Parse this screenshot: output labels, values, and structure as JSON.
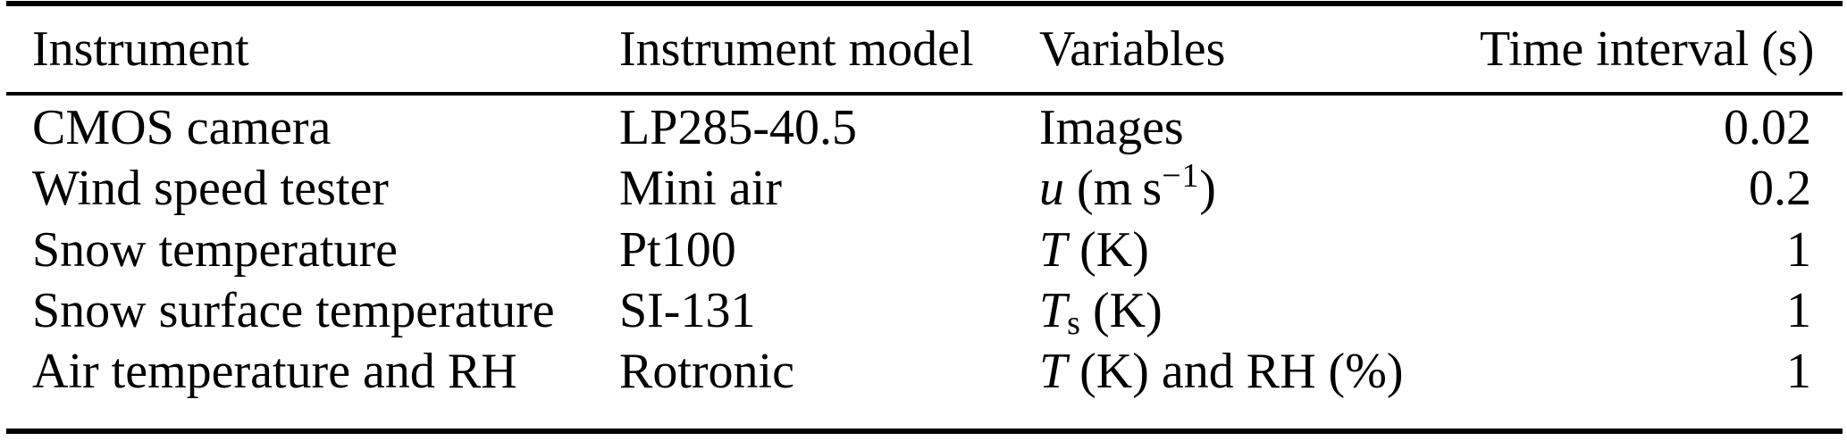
{
  "colors": {
    "paper": "#ffffff",
    "ink": "#000000"
  },
  "table": {
    "columns": [
      {
        "key": "instrument",
        "label": "Instrument"
      },
      {
        "key": "model",
        "label": "Instrument model"
      },
      {
        "key": "variables",
        "label": "Variables"
      },
      {
        "key": "interval",
        "label": "Time interval (s)"
      }
    ],
    "rows": [
      {
        "instrument": "CMOS camera",
        "model": "LP285-40.5",
        "variables": [
          {
            "text": "Images",
            "style": "plain"
          }
        ],
        "interval": "0.02"
      },
      {
        "instrument": "Wind speed tester",
        "model": "Mini air",
        "variables": [
          {
            "text": "u",
            "style": "italic"
          },
          {
            "text": " (m s",
            "style": "plain"
          },
          {
            "text": "−1",
            "style": "sup"
          },
          {
            "text": ")",
            "style": "plain"
          }
        ],
        "interval": "0.2"
      },
      {
        "instrument": "Snow temperature",
        "model": "Pt100",
        "variables": [
          {
            "text": "T",
            "style": "italic"
          },
          {
            "text": " (K)",
            "style": "plain"
          }
        ],
        "interval": "1"
      },
      {
        "instrument": "Snow surface temperature",
        "model": "SI-131",
        "variables": [
          {
            "text": "T",
            "style": "italic"
          },
          {
            "text": "s",
            "style": "sub"
          },
          {
            "text": " (K)",
            "style": "plain"
          }
        ],
        "interval": "1"
      },
      {
        "instrument": "Air temperature and RH",
        "model": "Rotronic",
        "variables": [
          {
            "text": "T",
            "style": "italic"
          },
          {
            "text": " (K) and RH (%)",
            "style": "plain"
          }
        ],
        "interval": "1"
      }
    ]
  }
}
